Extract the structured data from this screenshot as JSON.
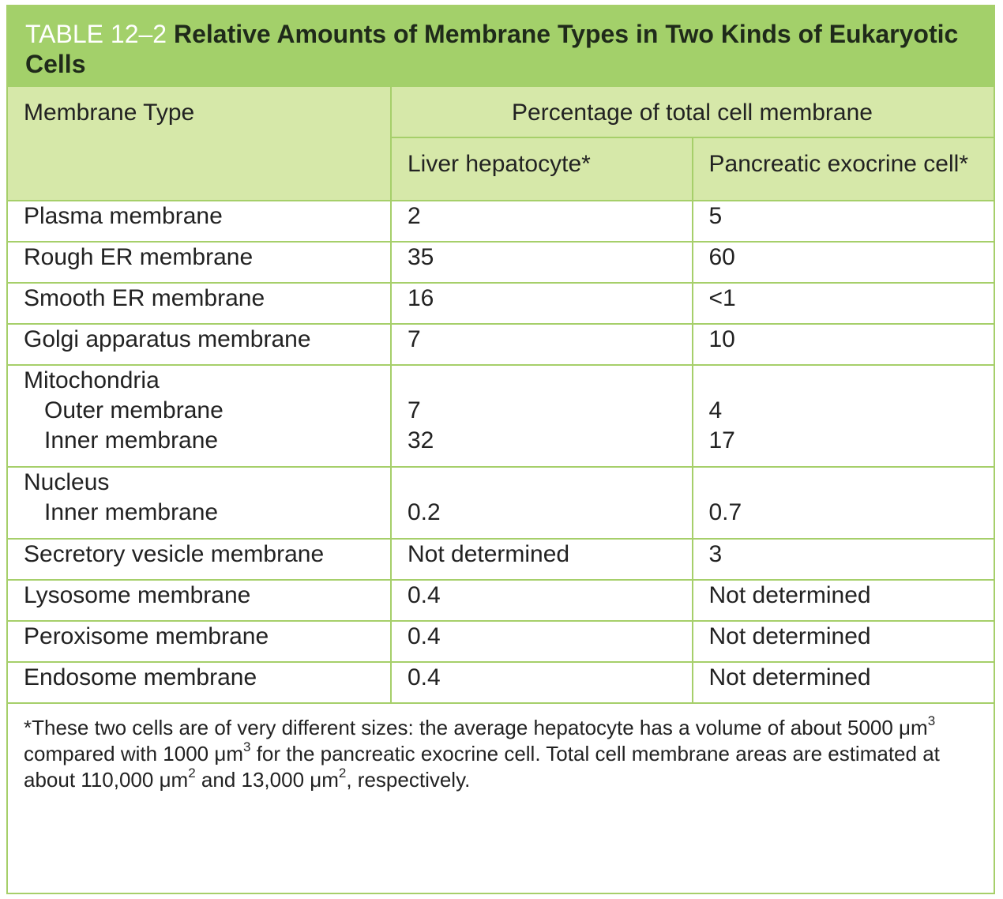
{
  "title": {
    "label": "TABLE 12–2",
    "text": "Relative Amounts of Membrane Types in Two Kinds of Eukaryotic Cells"
  },
  "header": {
    "col1": "Membrane Type",
    "group": "Percentage of total cell membrane",
    "col2": "Liver hepatocyte*",
    "col3": "Pancreatic exocrine cell*"
  },
  "rows": [
    {
      "name": "Plasma membrane",
      "liver": "2",
      "pancreas": "5"
    },
    {
      "name": "Rough ER membrane",
      "liver": "35",
      "pancreas": "60"
    },
    {
      "name": "Smooth ER membrane",
      "liver": "16",
      "pancreas": "<1"
    },
    {
      "name": "Golgi apparatus membrane",
      "liver": "7",
      "pancreas": "10"
    },
    {
      "name": "Mitochondria",
      "sub": [
        {
          "name": "Outer membrane",
          "liver": "7",
          "pancreas": "4"
        },
        {
          "name": "Inner membrane",
          "liver": "32",
          "pancreas": "17"
        }
      ]
    },
    {
      "name": "Nucleus",
      "sub": [
        {
          "name": "Inner membrane",
          "liver": "0.2",
          "pancreas": "0.7"
        }
      ]
    },
    {
      "name": "Secretory vesicle membrane",
      "liver": "Not determined",
      "pancreas": "3"
    },
    {
      "name": "Lysosome membrane",
      "liver": "0.4",
      "pancreas": "Not determined"
    },
    {
      "name": "Peroxisome membrane",
      "liver": "0.4",
      "pancreas": "Not determined"
    },
    {
      "name": "Endosome membrane",
      "liver": "0.4",
      "pancreas": "Not determined"
    }
  ],
  "footnote": {
    "t1": "*These two cells are of very different sizes: the average hepatocyte has a volume of about 5000 μm",
    "s1": "3",
    "t2": " compared with 1000 μm",
    "s2": "3",
    "t3": " for the pancreatic exocrine cell. Total cell membrane areas are estimated at about 110,000 μm",
    "s3": "2",
    "t4": " and 13,000 μm",
    "s4": "2",
    "t5": ", respectively."
  }
}
